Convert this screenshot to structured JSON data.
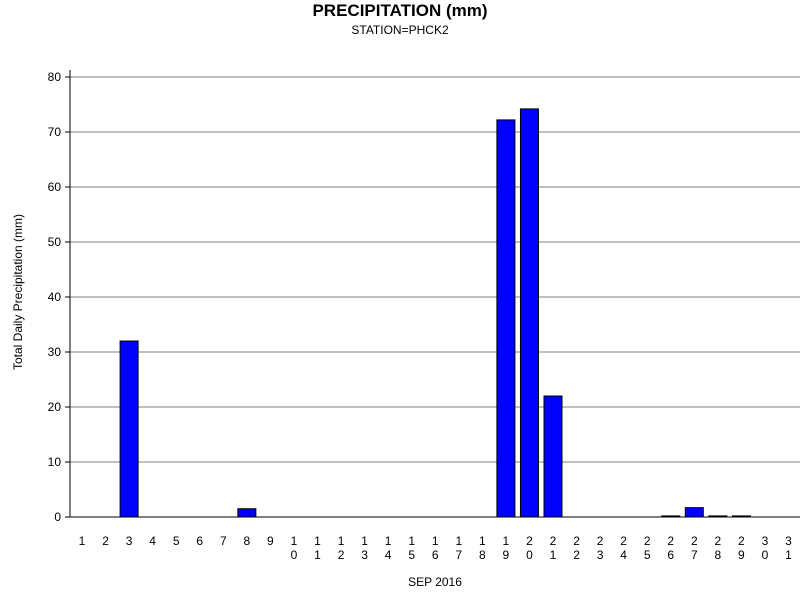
{
  "chart_data": {
    "type": "bar",
    "title": "PRECIPITATION (mm)",
    "subtitle": "STATION=PHCK2",
    "xlabel": "SEP 2016",
    "ylabel": "Total Daily Precipitation (mm)",
    "categories": [
      "1",
      "2",
      "3",
      "4",
      "5",
      "6",
      "7",
      "8",
      "9",
      "10",
      "11",
      "12",
      "13",
      "14",
      "15",
      "16",
      "17",
      "18",
      "19",
      "20",
      "21",
      "22",
      "23",
      "24",
      "25",
      "26",
      "27",
      "28",
      "29",
      "30",
      "31"
    ],
    "values": [
      0,
      0,
      32,
      0,
      0,
      0,
      0,
      1.5,
      0,
      0,
      0,
      0,
      0,
      0,
      0,
      0,
      0,
      0,
      72.2,
      74.2,
      22,
      0,
      0,
      0,
      0,
      0.2,
      1.7,
      0.2,
      0.2,
      0,
      0
    ],
    "ylim": [
      0,
      80
    ],
    "yticks": [
      0,
      10,
      20,
      30,
      40,
      50,
      60,
      70,
      80
    ],
    "grid": true,
    "bar_color": "#0000ff"
  }
}
